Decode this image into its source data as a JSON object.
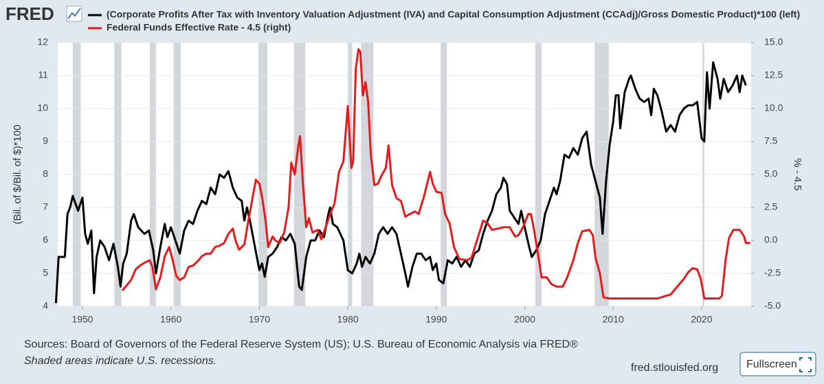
{
  "logo": "FRED",
  "chart_data": {
    "type": "line",
    "series": [
      {
        "name": "(Corporate Profits After Tax with Inventory Valuation Adjustment (IVA) and Capital Consumption Adjustment (CCAdj)/Gross Domestic Product)*100 (left)",
        "color": "#000000",
        "axis": "y",
        "x": [
          1947.0,
          1947.3,
          1948.0,
          1948.3,
          1948.6,
          1948.9,
          1949.5,
          1950.0,
          1950.3,
          1950.6,
          1951.0,
          1951.3,
          1951.6,
          1952.0,
          1952.5,
          1953.0,
          1953.5,
          1954.0,
          1954.3,
          1954.6,
          1955.0,
          1955.5,
          1955.8,
          1956.3,
          1957.0,
          1957.5,
          1958.0,
          1958.3,
          1958.8,
          1959.3,
          1959.6,
          1960.0,
          1960.5,
          1961.0,
          1961.5,
          1962.0,
          1962.5,
          1963.0,
          1963.5,
          1964.0,
          1964.5,
          1965.0,
          1965.5,
          1966.0,
          1966.5,
          1967.0,
          1967.5,
          1968.0,
          1968.3,
          1968.6,
          1969.0,
          1969.5,
          1970.0,
          1970.3,
          1970.6,
          1971.0,
          1971.5,
          1972.0,
          1972.5,
          1973.0,
          1973.5,
          1974.0,
          1974.5,
          1974.8,
          1975.3,
          1975.8,
          1976.3,
          1976.8,
          1977.3,
          1977.8,
          1978.0,
          1978.3,
          1978.8,
          1979.5,
          1980.0,
          1980.5,
          1981.0,
          1981.3,
          1981.6,
          1982.0,
          1982.5,
          1983.0,
          1983.5,
          1984.0,
          1984.5,
          1985.0,
          1985.5,
          1986.0,
          1986.5,
          1986.8,
          1987.3,
          1987.8,
          1988.3,
          1988.8,
          1989.3,
          1989.6,
          1990.0,
          1990.3,
          1990.8,
          1991.3,
          1991.8,
          1992.3,
          1992.8,
          1993.3,
          1993.8,
          1994.3,
          1994.8,
          1995.3,
          1995.8,
          1996.3,
          1996.8,
          1997.3,
          1997.6,
          1998.0,
          1998.3,
          1998.8,
          1999.3,
          1999.6,
          2000.0,
          2000.5,
          2000.8,
          2001.3,
          2001.8,
          2002.3,
          2002.8,
          2003.3,
          2003.6,
          2004.0,
          2004.5,
          2005.0,
          2005.5,
          2006.0,
          2006.5,
          2007.0,
          2007.5,
          2008.0,
          2008.5,
          2008.8,
          2009.2,
          2009.6,
          2010.0,
          2010.3,
          2010.6,
          2010.8,
          2011.3,
          2011.8,
          2012.0,
          2012.5,
          2013.0,
          2013.5,
          2014.0,
          2014.3,
          2014.6,
          2015.0,
          2015.5,
          2016.0,
          2016.5,
          2017.0,
          2017.5,
          2018.0,
          2018.5,
          2019.0,
          2019.5,
          2020.0,
          2020.3,
          2020.6,
          2020.9,
          2021.3,
          2021.8,
          2022.1,
          2022.5,
          2023.0,
          2023.5,
          2024.0,
          2024.3,
          2024.6,
          2025.0
        ],
        "values": [
          4.1,
          5.5,
          5.5,
          6.8,
          7.0,
          7.35,
          6.9,
          7.3,
          6.2,
          5.9,
          6.3,
          4.4,
          5.5,
          6.0,
          5.8,
          5.4,
          5.9,
          5.2,
          4.6,
          5.3,
          5.6,
          6.6,
          6.8,
          6.4,
          6.2,
          6.3,
          5.7,
          5.0,
          5.8,
          6.5,
          6.1,
          6.4,
          6.0,
          5.6,
          6.3,
          6.6,
          6.5,
          6.9,
          7.2,
          7.1,
          7.6,
          7.4,
          8.0,
          7.9,
          8.1,
          7.6,
          7.3,
          7.2,
          6.6,
          7.0,
          6.5,
          5.8,
          5.1,
          5.3,
          4.9,
          5.5,
          5.6,
          5.8,
          6.1,
          6.0,
          6.2,
          5.9,
          4.6,
          4.5,
          5.5,
          6.0,
          6.0,
          6.3,
          6.1,
          6.8,
          7.0,
          6.5,
          6.4,
          6.0,
          5.1,
          5.0,
          5.3,
          5.6,
          5.2,
          5.5,
          5.3,
          5.6,
          6.2,
          6.4,
          6.2,
          6.4,
          6.2,
          5.6,
          5.0,
          4.6,
          5.2,
          5.6,
          5.6,
          5.4,
          5.5,
          5.1,
          5.3,
          4.8,
          4.7,
          5.4,
          5.3,
          5.5,
          5.2,
          5.4,
          5.2,
          5.6,
          5.7,
          6.2,
          6.6,
          6.9,
          7.4,
          7.6,
          7.9,
          7.7,
          6.9,
          6.7,
          6.5,
          6.9,
          6.4,
          5.8,
          5.5,
          5.7,
          6.0,
          6.8,
          7.2,
          7.6,
          7.4,
          7.8,
          8.6,
          8.5,
          8.8,
          8.6,
          9.1,
          9.3,
          8.3,
          7.8,
          7.3,
          6.2,
          7.8,
          8.9,
          9.6,
          10.4,
          10.4,
          9.4,
          10.5,
          10.9,
          11.0,
          10.6,
          10.3,
          10.2,
          10.3,
          9.8,
          10.6,
          10.4,
          9.9,
          9.3,
          9.5,
          9.3,
          9.8,
          10.0,
          10.1,
          10.1,
          10.2,
          9.1,
          9.0,
          11.1,
          10.0,
          11.4,
          10.9,
          10.3,
          10.9,
          10.5,
          10.7,
          11.0,
          10.5,
          11.0,
          10.7
        ]
      },
      {
        "name": "Federal Funds Effective Rate - 4.5 (right)",
        "color": "#e41a1c",
        "axis": "y2",
        "x": [
          1954.5,
          1955.0,
          1955.5,
          1956.0,
          1956.5,
          1957.0,
          1957.6,
          1957.9,
          1958.3,
          1958.8,
          1959.3,
          1959.8,
          1960.2,
          1960.6,
          1961.0,
          1961.5,
          1962.0,
          1962.5,
          1963.0,
          1963.5,
          1964.0,
          1964.5,
          1965.0,
          1965.5,
          1966.0,
          1966.5,
          1967.0,
          1967.3,
          1967.7,
          1968.3,
          1968.7,
          1969.3,
          1969.6,
          1970.0,
          1970.3,
          1970.7,
          1971.0,
          1971.5,
          1971.8,
          1972.3,
          1972.8,
          1973.3,
          1973.6,
          1974.0,
          1974.4,
          1974.6,
          1974.9,
          1975.3,
          1975.6,
          1976.0,
          1976.6,
          1977.0,
          1977.5,
          1978.0,
          1978.5,
          1979.0,
          1979.5,
          1980.0,
          1980.4,
          1980.6,
          1980.9,
          1981.2,
          1981.4,
          1981.7,
          1982.0,
          1982.3,
          1982.6,
          1983.0,
          1983.4,
          1983.8,
          1984.3,
          1984.6,
          1985.0,
          1985.5,
          1986.0,
          1986.5,
          1987.0,
          1987.6,
          1988.0,
          1988.6,
          1989.3,
          1989.6,
          1990.0,
          1990.6,
          1991.0,
          1991.5,
          1992.0,
          1992.6,
          1993.5,
          1994.0,
          1994.6,
          1995.3,
          1995.8,
          1996.3,
          1997.0,
          1997.6,
          1998.3,
          1998.9,
          1999.3,
          1999.8,
          2000.4,
          2000.7,
          2001.0,
          2001.5,
          2001.9,
          2002.5,
          2003.0,
          2003.6,
          2004.3,
          2004.8,
          2005.5,
          2006.0,
          2006.5,
          2007.3,
          2007.7,
          2008.0,
          2008.5,
          2008.9,
          2009.5,
          2010.0,
          2011.0,
          2012.0,
          2013.0,
          2014.0,
          2015.0,
          2016.0,
          2016.5,
          2017.0,
          2017.5,
          2018.0,
          2018.5,
          2019.0,
          2019.5,
          2019.9,
          2020.3,
          2021.0,
          2022.0,
          2022.3,
          2022.7,
          2023.1,
          2023.6,
          2024.3,
          2024.8,
          2025.0,
          2025.5
        ],
        "values": [
          -3.8,
          -3.4,
          -3.0,
          -2.2,
          -1.9,
          -1.7,
          -1.5,
          -2.0,
          -3.7,
          -2.8,
          -1.2,
          -0.5,
          -1.5,
          -2.7,
          -3.0,
          -2.8,
          -2.0,
          -1.9,
          -1.6,
          -1.2,
          -1.0,
          -1.0,
          -0.5,
          -0.4,
          -0.2,
          0.5,
          0.9,
          0.0,
          -0.7,
          -0.3,
          1.3,
          3.5,
          4.6,
          4.3,
          3.3,
          1.5,
          -0.5,
          0.3,
          0.0,
          -0.2,
          0.6,
          2.5,
          5.9,
          5.0,
          7.2,
          7.9,
          4.5,
          1.0,
          1.7,
          0.6,
          0.8,
          0.1,
          1.0,
          2.0,
          2.8,
          5.2,
          6.0,
          10.2,
          5.5,
          6.0,
          13.0,
          14.5,
          14.3,
          11.0,
          12.0,
          10.5,
          6.5,
          4.2,
          4.3,
          4.9,
          5.5,
          7.2,
          4.2,
          3.2,
          3.0,
          1.8,
          2.0,
          2.2,
          2.0,
          3.3,
          5.2,
          4.3,
          3.7,
          3.6,
          2.0,
          1.3,
          -0.5,
          -1.4,
          -1.5,
          -1.3,
          0.0,
          1.5,
          1.3,
          0.8,
          0.9,
          1.0,
          1.0,
          0.3,
          0.4,
          1.0,
          2.0,
          2.0,
          1.0,
          -1.0,
          -2.8,
          -2.8,
          -3.3,
          -3.5,
          -3.5,
          -2.8,
          -1.5,
          -0.2,
          0.7,
          0.8,
          0.4,
          -1.3,
          -2.5,
          -4.3,
          -4.4,
          -4.4,
          -4.4,
          -4.4,
          -4.4,
          -4.4,
          -4.4,
          -4.2,
          -4.1,
          -3.7,
          -3.3,
          -2.9,
          -2.4,
          -2.1,
          -2.2,
          -2.9,
          -4.4,
          -4.4,
          -4.4,
          -4.2,
          -1.5,
          0.2,
          0.8,
          0.8,
          0.3,
          -0.2,
          -0.2
        ]
      }
    ],
    "recessions": [
      [
        1948.9,
        1949.8
      ],
      [
        1953.6,
        1954.4
      ],
      [
        1957.6,
        1958.3
      ],
      [
        1960.3,
        1961.1
      ],
      [
        1969.9,
        1970.9
      ],
      [
        1973.9,
        1975.2
      ],
      [
        1980.0,
        1980.5
      ],
      [
        1981.5,
        1982.9
      ],
      [
        1990.5,
        1991.2
      ],
      [
        2001.2,
        2001.9
      ],
      [
        2007.9,
        2009.5
      ],
      [
        2020.1,
        2020.3
      ]
    ],
    "recession_color": "#c8ccd1",
    "ylabel": "(Bil. of $/Bil. of $)*100",
    "y2label": "% - 4.5",
    "xlim": [
      1947.2,
      2025.6
    ],
    "xticks": [
      1950,
      1960,
      1970,
      1980,
      1990,
      2000,
      2010,
      2020
    ],
    "ylim": [
      4,
      12
    ],
    "yticks": [
      4,
      5,
      6,
      7,
      8,
      9,
      10,
      11,
      12
    ],
    "y2lim": [
      -5,
      15
    ],
    "y2ticks": [
      {
        "value": -5,
        "label": "-5.0"
      },
      -2.5,
      {
        "value": 0,
        "label": "0.0"
      },
      2.5,
      {
        "value": 5,
        "label": "5.0"
      },
      7.5,
      {
        "value": 10,
        "label": "10.0"
      },
      12.5,
      {
        "value": 15,
        "label": "15.0"
      }
    ],
    "grid": true
  },
  "footer": {
    "sources": "Sources: Board of Governors of the Federal Reserve System (US); U.S. Bureau of Economic Analysis via FRED®",
    "note": "Shaded areas indicate U.S. recessions.",
    "site": "fred.stlouisfed.org",
    "button": "Fullscreen"
  }
}
